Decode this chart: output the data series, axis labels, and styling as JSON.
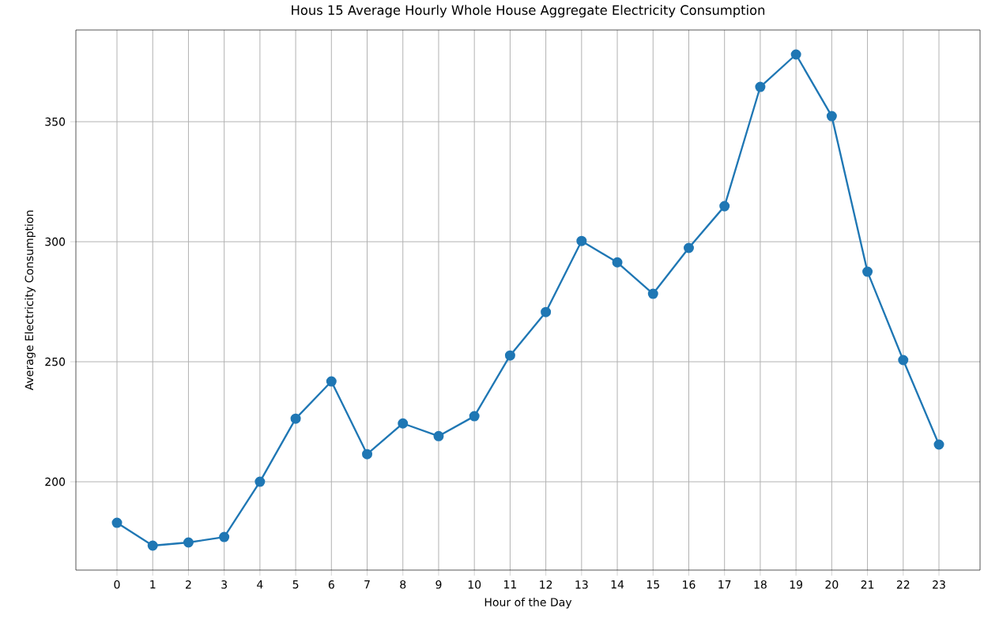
{
  "chart_data": {
    "type": "line",
    "title": "Hous 15 Average Hourly Whole House Aggregate Electricity Consumption",
    "xlabel": "Hour of the Day",
    "ylabel": "Average Electricity Consumption",
    "x": [
      0,
      1,
      2,
      3,
      4,
      5,
      6,
      7,
      8,
      9,
      10,
      11,
      12,
      13,
      14,
      15,
      16,
      17,
      18,
      19,
      20,
      21,
      22,
      23
    ],
    "series": [
      {
        "color": "#1f77b4",
        "values": [
          182.9,
          173.4,
          174.7,
          177,
          200,
          226.3,
          241.8,
          211.5,
          224.3,
          219,
          227.3,
          252.6,
          270.7,
          300.3,
          291.4,
          278.3,
          297.4,
          314.8,
          364.5,
          378,
          352.3,
          287.5,
          250.7,
          215.5
        ]
      }
    ],
    "xlim": [
      -1.15,
      24.15
    ],
    "ylim": [
      163.2,
      388.2
    ],
    "xticks": [
      0,
      1,
      2,
      3,
      4,
      5,
      6,
      7,
      8,
      9,
      10,
      11,
      12,
      13,
      14,
      15,
      16,
      17,
      18,
      19,
      20,
      21,
      22,
      23
    ],
    "yticks": [
      200,
      250,
      300,
      350
    ],
    "grid": true,
    "marker": "circle",
    "line_style": "solid"
  }
}
